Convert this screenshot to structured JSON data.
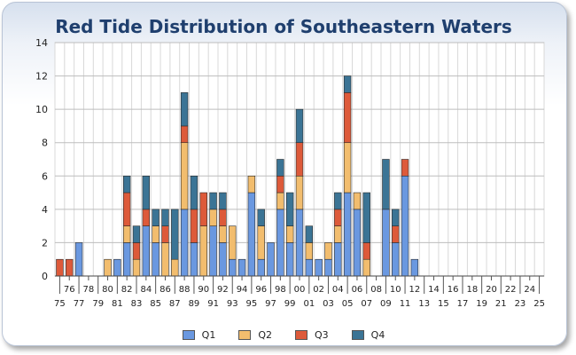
{
  "chart_data": {
    "type": "bar",
    "stacked": true,
    "title": "Red Tide Distribution of Southeastern Waters",
    "xlabel": "",
    "ylabel": "",
    "ylim": [
      0,
      14
    ],
    "yticks": [
      "0",
      "2",
      "4",
      "6",
      "8",
      "10",
      "12",
      "14"
    ],
    "grid": true,
    "legend_position": "bottom",
    "categories": [
      "75",
      "76",
      "77",
      "78",
      "79",
      "80",
      "81",
      "82",
      "83",
      "84",
      "85",
      "86",
      "87",
      "88",
      "89",
      "90",
      "91",
      "92",
      "93",
      "94",
      "95",
      "96",
      "97",
      "98",
      "99",
      "00",
      "01",
      "02",
      "03",
      "04",
      "05",
      "06",
      "07",
      "08",
      "09",
      "10",
      "11",
      "12",
      "13",
      "14",
      "15",
      "16",
      "17",
      "18",
      "19",
      "20",
      "21",
      "22",
      "23",
      "24",
      "25"
    ],
    "series": [
      {
        "name": "Q1",
        "color": "#6a98e0",
        "values": [
          0,
          0,
          2,
          0,
          0,
          0,
          1,
          2,
          0,
          3,
          2,
          0,
          0,
          4,
          2,
          0,
          3,
          2,
          1,
          1,
          5,
          1,
          2,
          4,
          2,
          4,
          1,
          1,
          1,
          2,
          5,
          4,
          0,
          0,
          4,
          2,
          6,
          1,
          0,
          0,
          0,
          0,
          0,
          0,
          0,
          0,
          0,
          0,
          0,
          0,
          0
        ]
      },
      {
        "name": "Q2",
        "color": "#f2bd6e",
        "values": [
          0,
          0,
          0,
          0,
          0,
          1,
          0,
          1,
          1,
          0,
          1,
          2,
          1,
          4,
          0,
          3,
          1,
          1,
          2,
          0,
          1,
          2,
          0,
          1,
          1,
          2,
          1,
          0,
          1,
          1,
          3,
          1,
          1,
          0,
          0,
          0,
          0,
          0,
          0,
          0,
          0,
          0,
          0,
          0,
          0,
          0,
          0,
          0,
          0,
          0,
          0
        ]
      },
      {
        "name": "Q3",
        "color": "#dd5a3a",
        "values": [
          1,
          1,
          0,
          0,
          0,
          0,
          0,
          2,
          1,
          1,
          0,
          1,
          0,
          1,
          2,
          2,
          0,
          1,
          0,
          0,
          0,
          0,
          0,
          1,
          0,
          2,
          0,
          0,
          0,
          1,
          3,
          0,
          1,
          0,
          0,
          1,
          1,
          0,
          0,
          0,
          0,
          0,
          0,
          0,
          0,
          0,
          0,
          0,
          0,
          0,
          0
        ]
      },
      {
        "name": "Q4",
        "color": "#3b7495",
        "values": [
          0,
          0,
          0,
          0,
          0,
          0,
          0,
          1,
          1,
          2,
          1,
          1,
          3,
          2,
          2,
          0,
          1,
          1,
          0,
          0,
          0,
          1,
          0,
          1,
          2,
          2,
          1,
          0,
          0,
          1,
          1,
          0,
          3,
          0,
          3,
          1,
          0,
          0,
          0,
          0,
          0,
          0,
          0,
          0,
          0,
          0,
          0,
          0,
          0,
          0,
          0
        ]
      }
    ]
  }
}
